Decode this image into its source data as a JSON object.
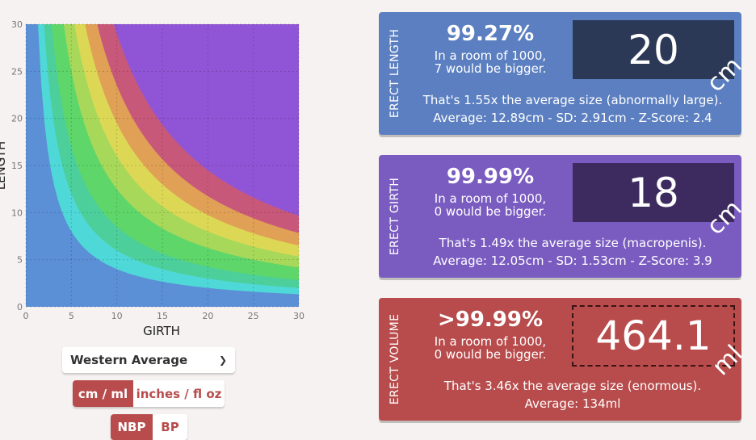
{
  "chart_data": {
    "type": "area",
    "xlabel": "GIRTH",
    "ylabel": "LENGTH",
    "xlim": [
      0,
      30
    ],
    "ylim": [
      0,
      30
    ],
    "x_ticks": [
      "0",
      "5",
      "10",
      "15",
      "20",
      "25",
      "30"
    ],
    "y_ticks": [
      "0",
      "5",
      "10",
      "15",
      "20",
      "25",
      "30"
    ],
    "grid": true,
    "bands": [
      {
        "name": "band-1",
        "color": "#5b8fd6",
        "k": 0
      },
      {
        "name": "band-2",
        "color": "#4fd8d8",
        "k": 40
      },
      {
        "name": "band-3",
        "color": "#4ccf9a",
        "k": 60
      },
      {
        "name": "band-4",
        "color": "#5fd66a",
        "k": 85
      },
      {
        "name": "band-5",
        "color": "#a8d85a",
        "k": 125
      },
      {
        "name": "band-6",
        "color": "#dcd855",
        "k": 160
      },
      {
        "name": "band-7",
        "color": "#e0a055",
        "k": 195
      },
      {
        "name": "band-8",
        "color": "#c8587a",
        "k": 235
      },
      {
        "name": "band-9",
        "color": "#9055d6",
        "k": 290
      }
    ]
  },
  "controls": {
    "population": "Western Average",
    "units": [
      "cm / ml",
      "inches / fl oz"
    ],
    "units_active": 0,
    "mode": [
      "NBP",
      "BP"
    ],
    "mode_active": 0
  },
  "cards": {
    "length": {
      "label": "ERECT LENGTH",
      "percentile": "99.27%",
      "room_line1": "In a room of 1000,",
      "room_line2": "7 would be bigger.",
      "value": "20",
      "unit": "cm",
      "description": "That's 1.55x the average size (abnormally large).",
      "stats": "Average: 12.89cm - SD: 2.91cm - Z-Score: 2.4"
    },
    "girth": {
      "label": "ERECT GIRTH",
      "percentile": "99.99%",
      "room_line1": "In a room of 1000,",
      "room_line2": "0 would be bigger.",
      "value": "18",
      "unit": "cm",
      "description": "That's 1.49x the average size (macropenis).",
      "stats": "Average: 12.05cm - SD: 1.53cm - Z-Score: 3.9"
    },
    "volume": {
      "label": "ERECT VOLUME",
      "percentile": ">99.99%",
      "room_line1": "In a room of 1000,",
      "room_line2": "0 would be bigger.",
      "value": "464.1",
      "unit": "ml",
      "description": "That's 3.46x the average size (enormous).",
      "stats": "Average: 134ml"
    }
  }
}
